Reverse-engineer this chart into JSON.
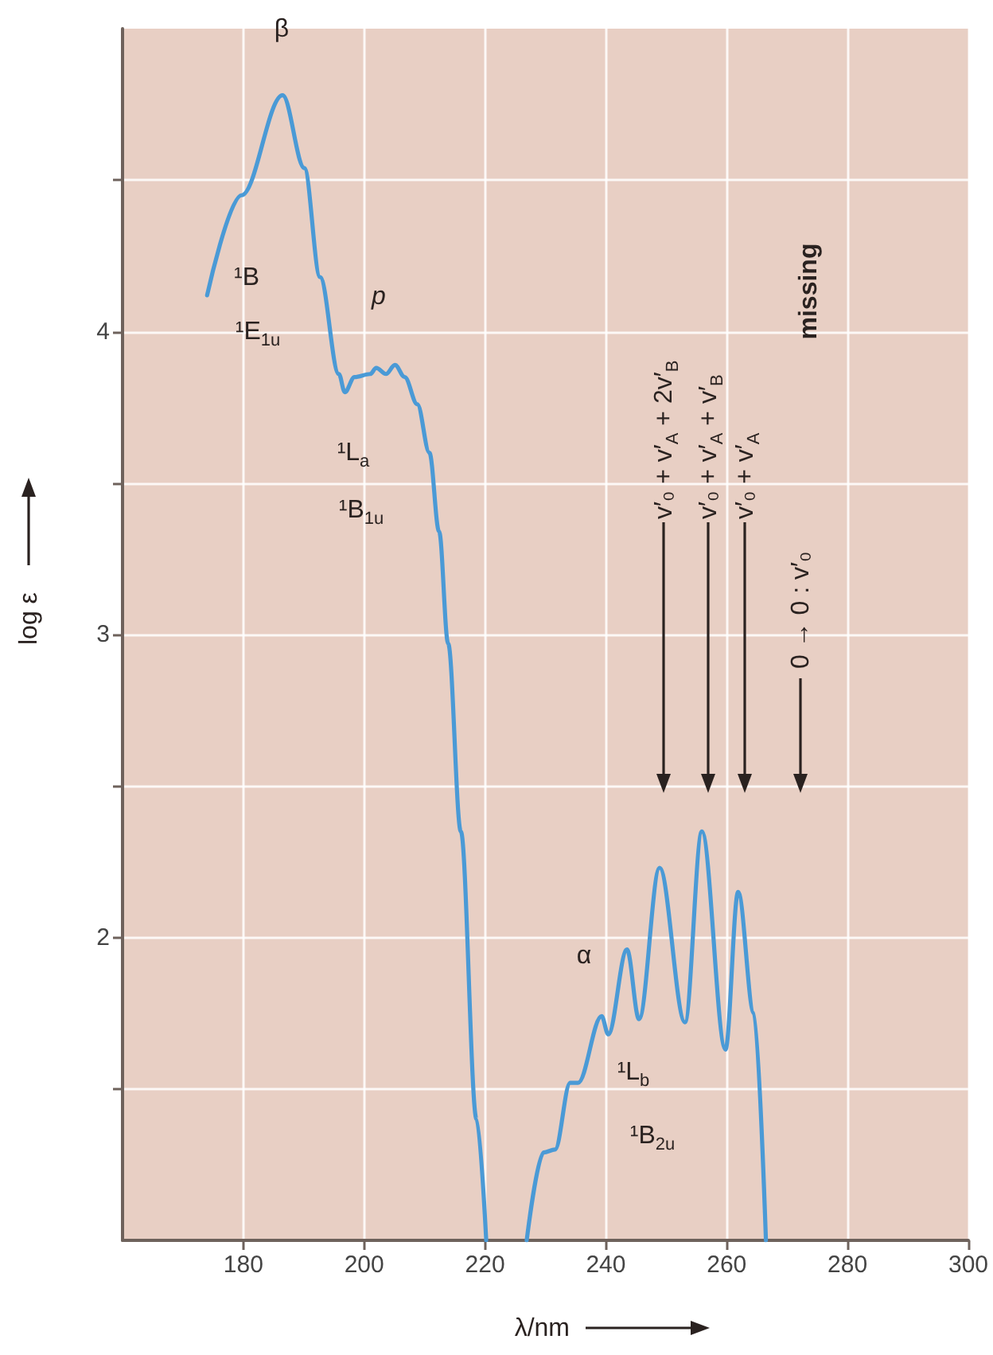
{
  "chart_data": {
    "type": "line",
    "xlabel": "λ/nm",
    "ylabel": "log ε",
    "x": [
      174.0,
      179.7,
      186.5,
      190.1,
      192.7,
      195.8,
      196.8,
      198.4,
      201.0,
      202.0,
      203.6,
      205.1,
      206.7,
      208.8,
      210.8,
      212.4,
      213.9,
      216.0,
      218.6,
      220.2,
      223.0,
      226.9,
      229.7,
      231.6,
      234.1,
      235.4,
      239.3,
      240.4,
      243.5,
      245.5,
      248.9,
      253.1,
      255.9,
      259.8,
      261.9,
      264.5,
      266.5
    ],
    "values": [
      4.12,
      4.45,
      4.78,
      4.54,
      4.18,
      3.86,
      3.8,
      3.85,
      3.86,
      3.88,
      3.86,
      3.89,
      3.85,
      3.76,
      3.6,
      3.34,
      2.97,
      2.35,
      1.4,
      1.0,
      null,
      1.0,
      1.29,
      1.3,
      1.52,
      1.52,
      1.74,
      1.68,
      1.96,
      1.73,
      2.23,
      1.72,
      2.35,
      1.63,
      2.15,
      1.75,
      1.0
    ],
    "color": "#4a9ad6",
    "xlim": [
      160,
      300
    ],
    "xticks": [
      180,
      200,
      220,
      240,
      260,
      280,
      300
    ],
    "ylim": [
      1,
      5
    ],
    "yticks": [
      {
        "value": 1.5,
        "label": null
      },
      2,
      {
        "value": 2.5,
        "label": null
      },
      3,
      {
        "value": 3.5,
        "label": null
      },
      4,
      {
        "value": 4.5,
        "label": null
      }
    ],
    "grid": true,
    "annotations": [
      "β",
      "¹B",
      "¹E$_{1u}$",
      "p",
      "¹L$_{a}$",
      "¹B$_{1u}$",
      "α",
      "¹L$_{b}$",
      "¹B$_{2u}$",
      "v′₀ + v′$_{A}$ + 2v′$_{B}$",
      "v′₀ + v′$_{A}$ + v′$_{B}$",
      "v′₀ + v′$_{A}$",
      "0 → 0 : v′₀",
      "missing"
    ]
  }
}
